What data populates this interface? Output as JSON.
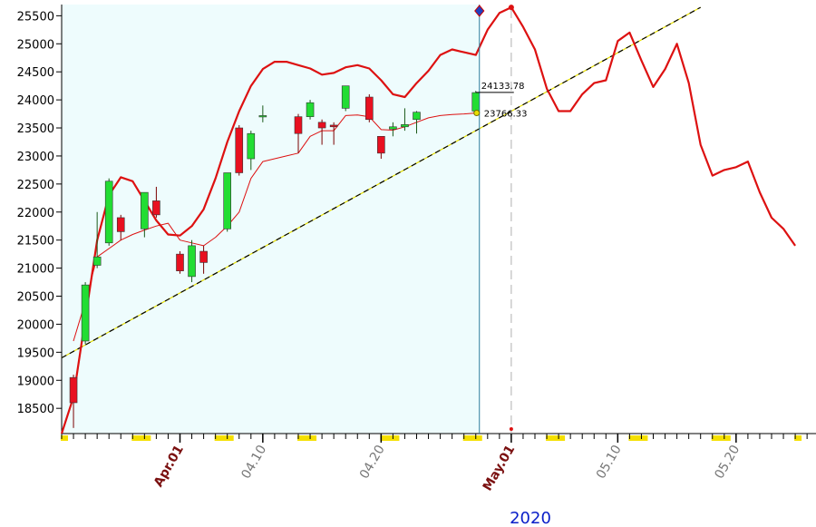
{
  "chart_data": {
    "type": "candlestick",
    "year_label": "2020",
    "y_ticks": [
      18500,
      19000,
      19500,
      20000,
      20500,
      21000,
      21500,
      22000,
      22500,
      23000,
      23500,
      24000,
      24500,
      25000,
      25500
    ],
    "ylim": [
      18050,
      25700
    ],
    "x_ticks": [
      {
        "label": "Apr.01",
        "idx": 10,
        "month": true
      },
      {
        "label": "04.10",
        "idx": 17,
        "month": false
      },
      {
        "label": "04.20",
        "idx": 27,
        "month": false
      },
      {
        "label": "May.01",
        "idx": 38,
        "month": true
      },
      {
        "label": "05.10",
        "idx": 47,
        "month": false
      },
      {
        "label": "05.20",
        "idx": 57,
        "month": false
      }
    ],
    "candles": [
      {
        "idx": 1,
        "o": 19050,
        "h": 19100,
        "l": 18150,
        "c": 18600
      },
      {
        "idx": 2,
        "o": 19700,
        "h": 20750,
        "l": 19650,
        "c": 20700
      },
      {
        "idx": 3,
        "o": 21050,
        "h": 22000,
        "l": 21000,
        "c": 21200
      },
      {
        "idx": 4,
        "o": 21450,
        "h": 22600,
        "l": 21400,
        "c": 22550
      },
      {
        "idx": 5,
        "o": 21900,
        "h": 21950,
        "l": 21500,
        "c": 21650
      },
      {
        "idx": 7,
        "o": 21700,
        "h": 22350,
        "l": 21550,
        "c": 22350
      },
      {
        "idx": 8,
        "o": 22200,
        "h": 22450,
        "l": 21900,
        "c": 21950
      },
      {
        "idx": 10,
        "o": 21250,
        "h": 21300,
        "l": 20900,
        "c": 20950
      },
      {
        "idx": 11,
        "o": 20850,
        "h": 21500,
        "l": 20750,
        "c": 21400
      },
      {
        "idx": 12,
        "o": 21300,
        "h": 21400,
        "l": 20900,
        "c": 21100
      },
      {
        "idx": 14,
        "o": 21700,
        "h": 22700,
        "l": 21650,
        "c": 22700
      },
      {
        "idx": 15,
        "o": 23500,
        "h": 23550,
        "l": 22650,
        "c": 22700
      },
      {
        "idx": 16,
        "o": 22950,
        "h": 23450,
        "l": 22750,
        "c": 23400
      },
      {
        "idx": 17,
        "o": 23700,
        "h": 23900,
        "l": 23600,
        "c": 23720
      },
      {
        "idx": 20,
        "o": 23700,
        "h": 23750,
        "l": 23050,
        "c": 23400
      },
      {
        "idx": 21,
        "o": 23700,
        "h": 24000,
        "l": 23650,
        "c": 23950
      },
      {
        "idx": 22,
        "o": 23600,
        "h": 23650,
        "l": 23200,
        "c": 23500
      },
      {
        "idx": 23,
        "o": 23550,
        "h": 23600,
        "l": 23200,
        "c": 23520
      },
      {
        "idx": 24,
        "o": 23850,
        "h": 24250,
        "l": 23800,
        "c": 24250
      },
      {
        "idx": 26,
        "o": 24050,
        "h": 24100,
        "l": 23600,
        "c": 23650
      },
      {
        "idx": 27,
        "o": 23350,
        "h": 23350,
        "l": 22950,
        "c": 23050
      },
      {
        "idx": 28,
        "o": 23480,
        "h": 23600,
        "l": 23350,
        "c": 23520
      },
      {
        "idx": 29,
        "o": 23520,
        "h": 23850,
        "l": 23450,
        "c": 23560
      },
      {
        "idx": 30,
        "o": 23650,
        "h": 23800,
        "l": 23400,
        "c": 23780
      },
      {
        "idx": 35,
        "o": 23800,
        "h": 24160,
        "l": 23750,
        "c": 24130
      }
    ],
    "upper_band": [
      [
        0,
        18050
      ],
      [
        1,
        18700
      ],
      [
        2,
        20100
      ],
      [
        3,
        21500
      ],
      [
        4,
        22300
      ],
      [
        5,
        22620
      ],
      [
        6,
        22550
      ],
      [
        7,
        22200
      ],
      [
        8,
        21850
      ],
      [
        9,
        21600
      ],
      [
        10,
        21580
      ],
      [
        11,
        21750
      ],
      [
        12,
        22050
      ],
      [
        13,
        22600
      ],
      [
        14,
        23250
      ],
      [
        15,
        23800
      ],
      [
        16,
        24250
      ],
      [
        17,
        24550
      ],
      [
        18,
        24680
      ],
      [
        19,
        24680
      ],
      [
        20,
        24620
      ],
      [
        21,
        24560
      ],
      [
        22,
        24450
      ],
      [
        23,
        24480
      ],
      [
        24,
        24580
      ],
      [
        25,
        24620
      ],
      [
        26,
        24560
      ],
      [
        27,
        24350
      ],
      [
        28,
        24100
      ],
      [
        29,
        24050
      ],
      [
        30,
        24300
      ],
      [
        31,
        24520
      ],
      [
        32,
        24800
      ],
      [
        33,
        24900
      ],
      [
        34,
        24850
      ],
      [
        35,
        24800
      ],
      [
        36,
        25250
      ],
      [
        37,
        25550
      ],
      [
        38,
        25650
      ],
      [
        39,
        25300
      ],
      [
        40,
        24900
      ],
      [
        41,
        24200
      ],
      [
        42,
        23800
      ],
      [
        43,
        23800
      ],
      [
        44,
        24100
      ],
      [
        45,
        24300
      ],
      [
        46,
        24350
      ],
      [
        47,
        25050
      ],
      [
        48,
        25200
      ],
      [
        49,
        24700
      ],
      [
        50,
        24230
      ],
      [
        51,
        24550
      ],
      [
        52,
        25000
      ],
      [
        53,
        24300
      ],
      [
        54,
        23200
      ],
      [
        55,
        22650
      ],
      [
        56,
        22750
      ],
      [
        57,
        22800
      ],
      [
        58,
        22900
      ],
      [
        59,
        22350
      ],
      [
        60,
        21900
      ],
      [
        61,
        21700
      ],
      [
        62,
        21400
      ]
    ],
    "middle_line": [
      [
        1,
        19700
      ],
      [
        2,
        20400
      ],
      [
        3,
        21200
      ],
      [
        4,
        21350
      ],
      [
        5,
        21500
      ],
      [
        6,
        21600
      ],
      [
        7,
        21680
      ],
      [
        8,
        21750
      ],
      [
        9,
        21800
      ],
      [
        10,
        21500
      ],
      [
        11,
        21450
      ],
      [
        12,
        21400
      ],
      [
        13,
        21550
      ],
      [
        14,
        21750
      ],
      [
        15,
        22000
      ],
      [
        16,
        22600
      ],
      [
        17,
        22900
      ],
      [
        18,
        22950
      ],
      [
        19,
        23000
      ],
      [
        20,
        23050
      ],
      [
        21,
        23350
      ],
      [
        22,
        23450
      ],
      [
        23,
        23450
      ],
      [
        24,
        23720
      ],
      [
        25,
        23730
      ],
      [
        26,
        23700
      ],
      [
        27,
        23470
      ],
      [
        28,
        23460
      ],
      [
        29,
        23520
      ],
      [
        30,
        23600
      ],
      [
        31,
        23680
      ],
      [
        32,
        23720
      ],
      [
        33,
        23740
      ],
      [
        34,
        23750
      ],
      [
        35,
        23766
      ]
    ],
    "trend_line": {
      "from": [
        0,
        19400
      ],
      "to": [
        54,
        25650
      ]
    },
    "current_idx": 35,
    "current_close": "24133.78",
    "current_mid": "23766.33",
    "peak_idx": 38
  }
}
